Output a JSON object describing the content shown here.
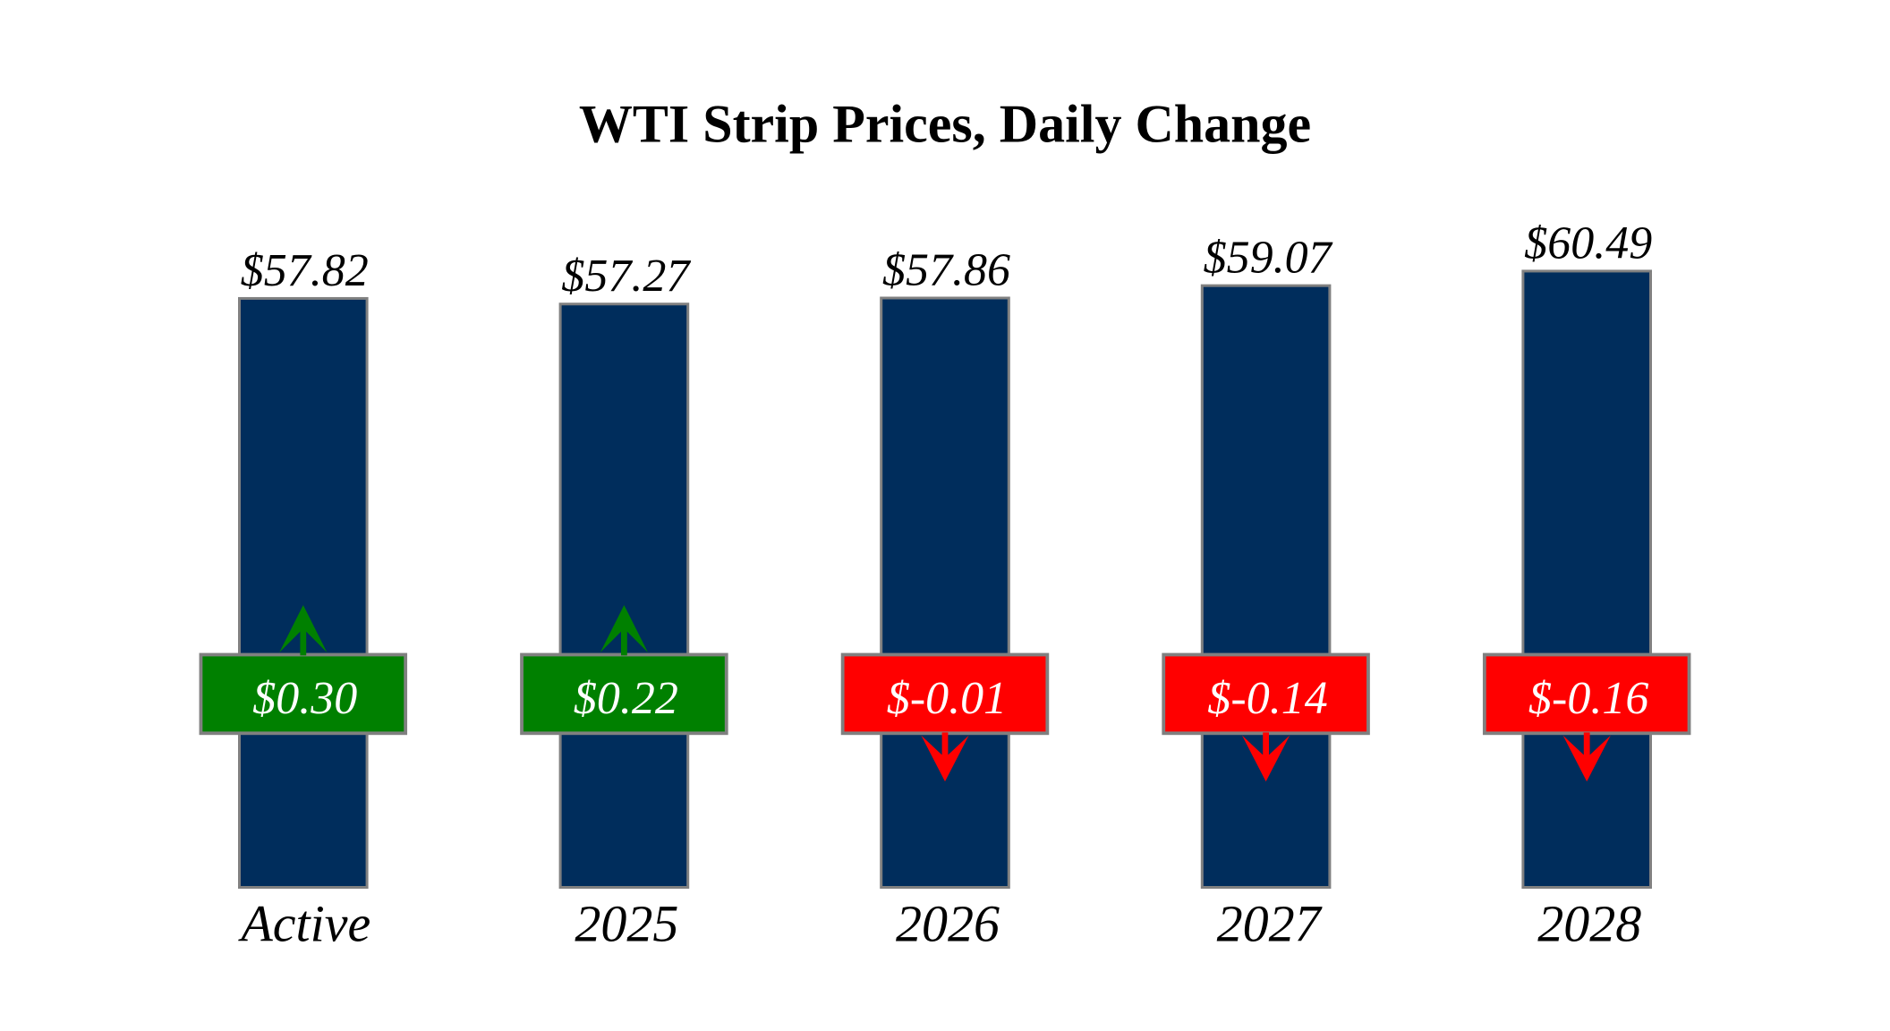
{
  "chart_data": {
    "type": "bar",
    "title": "WTI Strip Prices, Daily Change",
    "categories": [
      "Active",
      "2025",
      "2026",
      "2027",
      "2028"
    ],
    "series": [
      {
        "name": "Strip Price",
        "values": [
          57.82,
          57.27,
          57.86,
          59.07,
          60.49
        ]
      },
      {
        "name": "Daily Change",
        "values": [
          0.3,
          0.22,
          -0.01,
          -0.14,
          -0.16
        ]
      }
    ],
    "points": [
      {
        "category": "Active",
        "price": 57.82,
        "price_label": "$57.82",
        "change": 0.3,
        "change_label": "$0.30",
        "direction": "up"
      },
      {
        "category": "2025",
        "price": 57.27,
        "price_label": "$57.27",
        "change": 0.22,
        "change_label": "$0.22",
        "direction": "up"
      },
      {
        "category": "2026",
        "price": 57.86,
        "price_label": "$57.86",
        "change": -0.01,
        "change_label": "$-0.01",
        "direction": "down"
      },
      {
        "category": "2027",
        "price": 59.07,
        "price_label": "$59.07",
        "change": -0.14,
        "change_label": "$-0.14",
        "direction": "down"
      },
      {
        "category": "2028",
        "price": 60.49,
        "price_label": "$60.49",
        "change": -0.16,
        "change_label": "$-0.16",
        "direction": "down"
      }
    ],
    "xlabel": "",
    "ylabel": "",
    "ylim": [
      0,
      65
    ],
    "grid": false,
    "legend": false,
    "colors": {
      "bar_fill": "#002d5c",
      "bar_edge": "#808080",
      "up_fill": "#008000",
      "down_fill": "#ff0000",
      "badge_edge": "#808080",
      "badge_text": "#ffffff",
      "label_text": "#000000",
      "background": "#ffffff"
    }
  }
}
